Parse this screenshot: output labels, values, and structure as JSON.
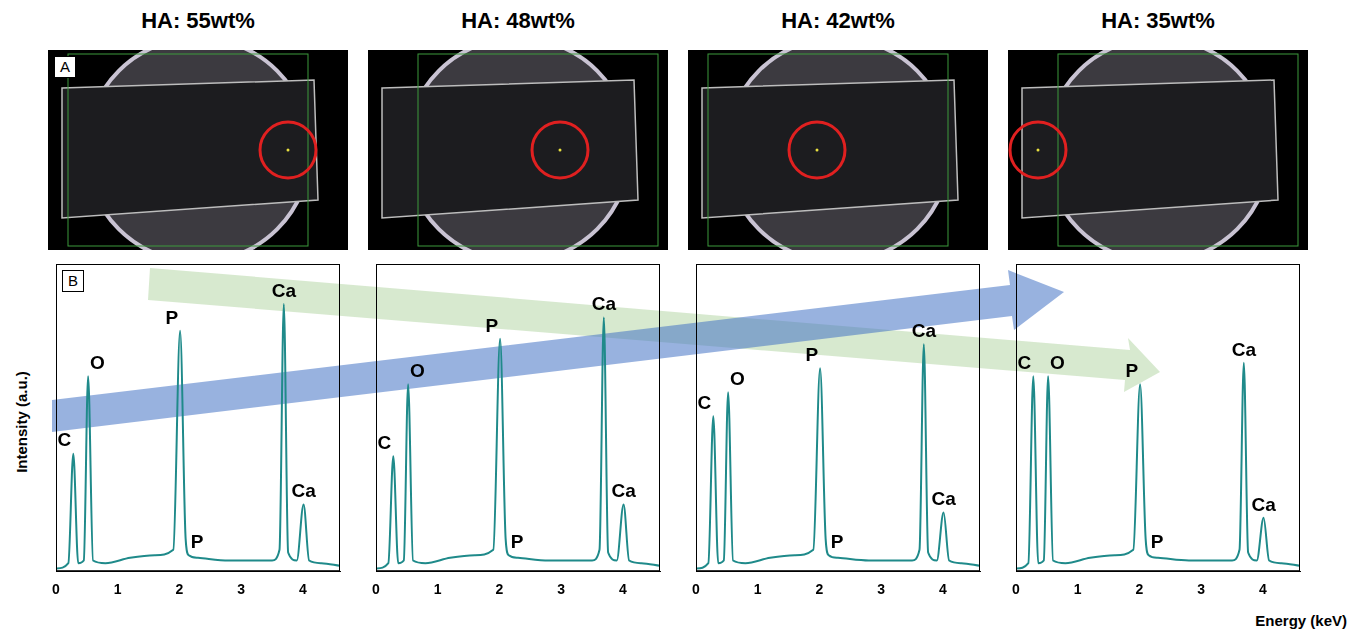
{
  "panel_letters": [
    "A",
    "B"
  ],
  "chart_data": [
    {
      "type": "line",
      "title": "HA: 55wt%",
      "y_label": "Intensity (a.u.)",
      "color": "#1f8a8a",
      "x": [
        0,
        0.2,
        0.28,
        0.36,
        0.45,
        0.52,
        0.6,
        0.8,
        1.2,
        1.6,
        1.9,
        2.01,
        2.1,
        2.15,
        2.3,
        2.8,
        3.5,
        3.62,
        3.69,
        3.76,
        3.9,
        4.01,
        4.1,
        4.3,
        4.6
      ],
      "values": [
        1,
        3,
        44,
        3,
        4,
        73,
        4,
        3,
        5,
        6,
        8,
        90,
        12,
        6,
        5,
        4,
        4,
        8,
        100,
        7,
        4,
        25,
        4,
        3,
        2
      ],
      "xlim": [
        0,
        4.6
      ],
      "xticks": [
        0,
        1,
        2,
        3,
        4
      ],
      "ylim": [
        0,
        115
      ],
      "tick_labels": "x",
      "grid": false,
      "annotations": [
        {
          "text": "C",
          "x": 0.28
        },
        {
          "text": "O",
          "x": 0.52
        },
        {
          "text": "P",
          "x": 2.01
        },
        {
          "text": "Ca",
          "x": 3.69
        },
        {
          "text": "P",
          "x": 2.15
        },
        {
          "text": "Ca",
          "x": 4.01
        }
      ]
    },
    {
      "type": "line",
      "title": "HA: 48wt%",
      "color": "#1f8a8a",
      "x": [
        0,
        0.2,
        0.28,
        0.36,
        0.45,
        0.52,
        0.6,
        0.8,
        1.2,
        1.6,
        1.9,
        2.01,
        2.1,
        2.15,
        2.3,
        2.8,
        3.5,
        3.62,
        3.69,
        3.76,
        3.9,
        4.01,
        4.1,
        4.3,
        4.6
      ],
      "values": [
        1,
        3,
        43,
        3,
        4,
        70,
        4,
        3,
        5,
        6,
        8,
        87,
        12,
        6,
        5,
        4,
        4,
        8,
        95,
        7,
        4,
        25,
        4,
        3,
        2
      ],
      "xlim": [
        0,
        4.6
      ],
      "xticks": [
        0,
        1,
        2,
        3,
        4
      ],
      "ylim": [
        0,
        115
      ],
      "tick_labels": "x",
      "grid": false,
      "annotations": [
        {
          "text": "C",
          "x": 0.28
        },
        {
          "text": "O",
          "x": 0.52
        },
        {
          "text": "P",
          "x": 2.01
        },
        {
          "text": "Ca",
          "x": 3.69
        },
        {
          "text": "P",
          "x": 2.15
        },
        {
          "text": "Ca",
          "x": 4.01
        }
      ]
    },
    {
      "type": "line",
      "title": "HA: 42wt%",
      "color": "#1f8a8a",
      "x": [
        0,
        0.2,
        0.28,
        0.36,
        0.45,
        0.52,
        0.6,
        0.8,
        1.2,
        1.6,
        1.9,
        2.01,
        2.1,
        2.15,
        2.3,
        2.8,
        3.5,
        3.62,
        3.69,
        3.76,
        3.9,
        4.01,
        4.1,
        4.3,
        4.6
      ],
      "values": [
        1,
        3,
        58,
        3,
        4,
        67,
        4,
        3,
        5,
        6,
        8,
        76,
        12,
        6,
        5,
        4,
        4,
        8,
        85,
        7,
        4,
        22,
        4,
        3,
        2
      ],
      "xlim": [
        0,
        4.6
      ],
      "xticks": [
        0,
        1,
        2,
        3,
        4
      ],
      "ylim": [
        0,
        115
      ],
      "tick_labels": "x",
      "grid": false,
      "annotations": [
        {
          "text": "C",
          "x": 0.28
        },
        {
          "text": "O",
          "x": 0.52
        },
        {
          "text": "P",
          "x": 2.01
        },
        {
          "text": "Ca",
          "x": 3.69
        },
        {
          "text": "P",
          "x": 2.15
        },
        {
          "text": "Ca",
          "x": 4.01
        }
      ]
    },
    {
      "type": "line",
      "title": "HA: 35wt%",
      "x_label": "Energy (keV)",
      "color": "#1f8a8a",
      "x": [
        0,
        0.2,
        0.28,
        0.36,
        0.45,
        0.52,
        0.6,
        0.8,
        1.2,
        1.6,
        1.9,
        2.01,
        2.1,
        2.15,
        2.3,
        2.8,
        3.5,
        3.62,
        3.69,
        3.76,
        3.9,
        4.01,
        4.1,
        4.3,
        4.6
      ],
      "values": [
        1,
        3,
        73,
        3,
        4,
        73,
        4,
        3,
        5,
        6,
        8,
        70,
        12,
        6,
        5,
        4,
        4,
        8,
        78,
        7,
        4,
        20,
        4,
        3,
        2
      ],
      "xlim": [
        0,
        4.6
      ],
      "xticks": [
        0,
        1,
        2,
        3,
        4
      ],
      "ylim": [
        0,
        115
      ],
      "tick_labels": "x",
      "grid": false,
      "annotations": [
        {
          "text": "C",
          "x": 0.28
        },
        {
          "text": "O",
          "x": 0.52
        },
        {
          "text": "P",
          "x": 2.01
        },
        {
          "text": "Ca",
          "x": 3.69
        },
        {
          "text": "P",
          "x": 2.15
        },
        {
          "text": "Ca",
          "x": 4.01
        }
      ]
    }
  ]
}
